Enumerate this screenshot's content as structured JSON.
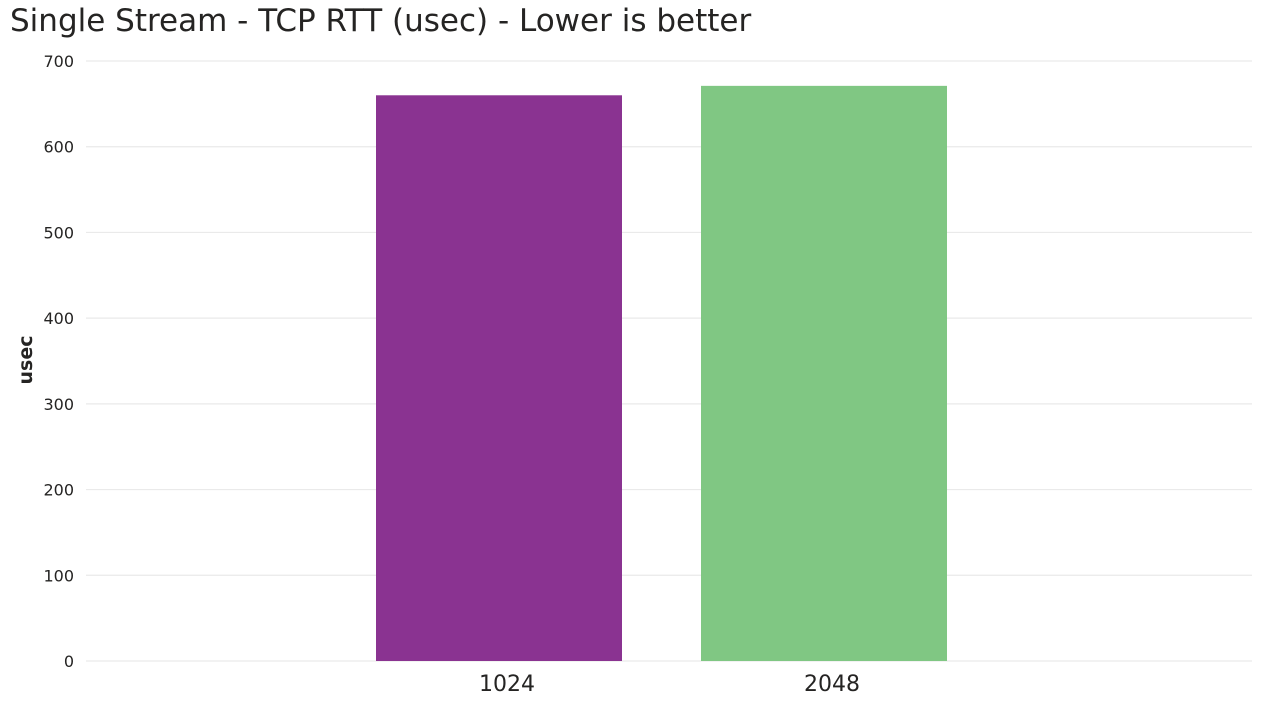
{
  "chart_data": {
    "type": "bar",
    "title": "Single Stream - TCP RTT (usec) - Lower is better",
    "xlabel": "",
    "ylabel": "usec",
    "categories": [
      "1024",
      "2048"
    ],
    "values": [
      660,
      671
    ],
    "colors": [
      "#8A3391",
      "#80C783"
    ],
    "ylim": [
      0,
      700
    ],
    "yticks": [
      0,
      100,
      200,
      300,
      400,
      500,
      600,
      700
    ],
    "grid": true,
    "legend": "none"
  }
}
